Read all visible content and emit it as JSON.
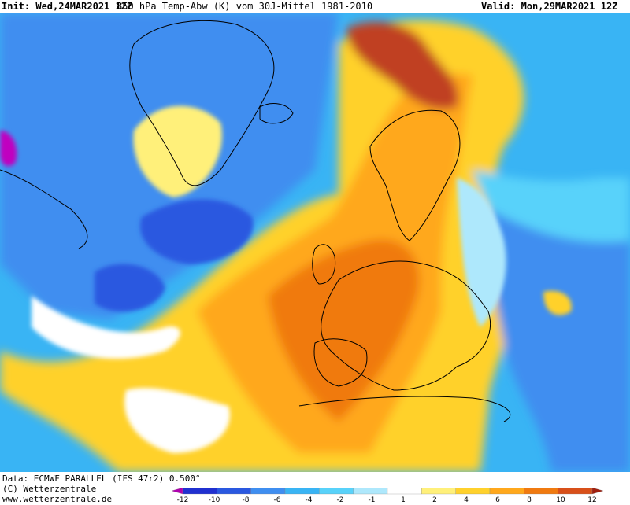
{
  "header": {
    "init": "Init: Wed,24MAR2021 12Z",
    "parameter": "850 hPa Temp-Abw (K) vom 30J-Mittel 1981-2010",
    "valid": "Valid: Mon,29MAR2021 12Z"
  },
  "footer": {
    "data_source": "Data: ECMWF PARALLEL (IFS 47r2) 0.500°",
    "copyright": "(C) Wetterzentrale",
    "website": "www.wetterzentrale.de"
  },
  "legend": {
    "ticks": [
      "-12",
      "-10",
      "-8",
      "-6",
      "-4",
      "-2",
      "-1",
      "1",
      "2",
      "4",
      "6",
      "8",
      "10",
      "12"
    ],
    "colors": [
      "#b000b0",
      "#2030d0",
      "#2a58e0",
      "#3f8ef0",
      "#39b4f4",
      "#58d2fa",
      "#aee8fc",
      "#ffffff",
      "#fff07a",
      "#ffd12c",
      "#ffa81c",
      "#f07a10",
      "#d8501a",
      "#a02010"
    ]
  },
  "map": {
    "colors": {
      "deep_blue": "#2a58e0",
      "blue": "#3f8ef0",
      "light_blue": "#39b4f4",
      "pale_blue": "#aee8fc",
      "white": "#ffffff",
      "yellow": "#ffd12c",
      "orange": "#ffa81c",
      "dark_orange": "#f07a10",
      "red_brown": "#c04020",
      "magenta": "#c000c0"
    }
  }
}
